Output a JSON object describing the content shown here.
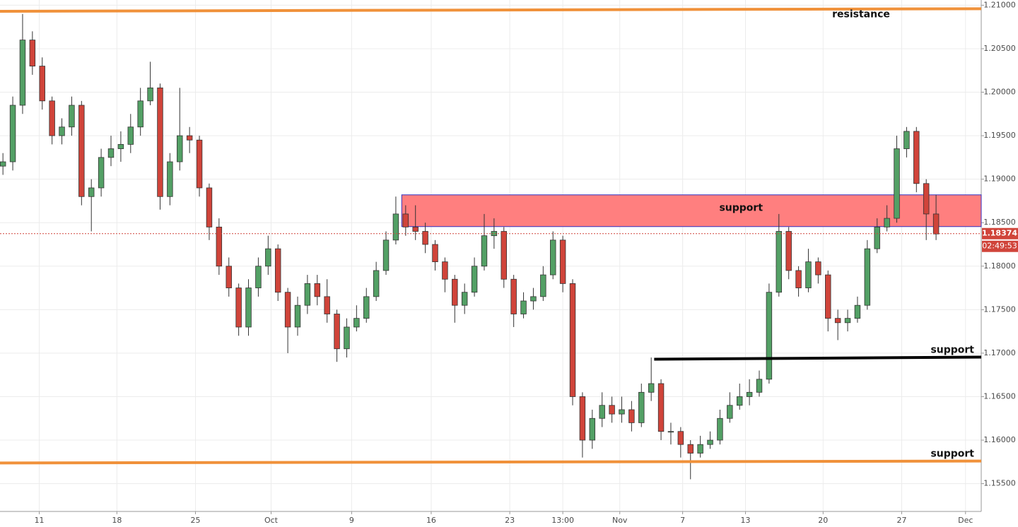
{
  "chart_data": {
    "type": "candlestick",
    "xlim": [
      -0.3,
      99.6
    ],
    "ylim": [
      1.1518,
      1.2106
    ],
    "grid": true,
    "up_color": "#53a065",
    "down_color": "#d0443a",
    "xticks": [
      {
        "value": 3.7,
        "label": "11"
      },
      {
        "value": 11.6,
        "label": "18"
      },
      {
        "value": 19.6,
        "label": "25"
      },
      {
        "value": 27.3,
        "label": "Oct"
      },
      {
        "value": 35.5,
        "label": "9"
      },
      {
        "value": 43.6,
        "label": "16"
      },
      {
        "value": 51.6,
        "label": "23"
      },
      {
        "value": 57.0,
        "label": "13:00"
      },
      {
        "value": 62.8,
        "label": "Nov"
      },
      {
        "value": 69.2,
        "label": "7"
      },
      {
        "value": 75.6,
        "label": "13"
      },
      {
        "value": 83.5,
        "label": "20"
      },
      {
        "value": 91.5,
        "label": "27"
      },
      {
        "value": 98.0,
        "label": "Dec"
      }
    ],
    "yticks": [
      {
        "value": 1.155,
        "label": "1.15500"
      },
      {
        "value": 1.16,
        "label": "1.16000"
      },
      {
        "value": 1.165,
        "label": "1.16500"
      },
      {
        "value": 1.17,
        "label": "1.17000"
      },
      {
        "value": 1.175,
        "label": "1.17500"
      },
      {
        "value": 1.18,
        "label": "1.18000"
      },
      {
        "value": 1.185,
        "label": "1.18500"
      },
      {
        "value": 1.19,
        "label": "1.19000"
      },
      {
        "value": 1.195,
        "label": "1.19500"
      },
      {
        "value": 1.2,
        "label": "1.20000"
      },
      {
        "value": 1.205,
        "label": "1.20500"
      },
      {
        "value": 1.21,
        "label": "1.21000"
      }
    ],
    "open": [
      1.1915,
      1.192,
      1.1985,
      1.206,
      1.203,
      1.199,
      1.195,
      1.196,
      1.1985,
      1.188,
      1.189,
      1.1925,
      1.1935,
      1.194,
      1.196,
      1.199,
      1.2005,
      1.188,
      1.192,
      1.195,
      1.1945,
      1.189,
      1.1845,
      1.18,
      1.1775,
      1.173,
      1.1775,
      1.18,
      1.182,
      1.177,
      1.173,
      1.1755,
      1.178,
      1.1765,
      1.1745,
      1.1705,
      1.173,
      1.174,
      1.1765,
      1.1795,
      1.183,
      1.186,
      1.1845,
      1.184,
      1.1825,
      1.1805,
      1.1785,
      1.1755,
      1.177,
      1.18,
      1.1835,
      1.184,
      1.1785,
      1.1745,
      1.176,
      1.1765,
      1.179,
      1.183,
      1.178,
      1.165,
      1.16,
      1.1625,
      1.164,
      1.163,
      1.1635,
      1.162,
      1.1655,
      1.1665,
      1.161,
      1.161,
      1.1595,
      1.1585,
      1.1595,
      1.16,
      1.1625,
      1.164,
      1.165,
      1.1655,
      1.167,
      1.177,
      1.184,
      1.1795,
      1.1775,
      1.1805,
      1.179,
      1.174,
      1.1735,
      1.174,
      1.1755,
      1.182,
      1.1845,
      1.1855,
      1.1935,
      1.1955,
      1.1895,
      1.186
    ],
    "high": [
      1.193,
      1.1995,
      1.209,
      1.207,
      1.204,
      1.1995,
      1.197,
      1.1995,
      1.199,
      1.19,
      1.1935,
      1.195,
      1.1955,
      1.1975,
      1.2005,
      1.2035,
      1.201,
      1.193,
      1.2005,
      1.196,
      1.195,
      1.1895,
      1.1855,
      1.181,
      1.178,
      1.1785,
      1.181,
      1.1835,
      1.1825,
      1.1775,
      1.1765,
      1.179,
      1.179,
      1.1785,
      1.175,
      1.174,
      1.1755,
      1.1775,
      1.1805,
      1.184,
      1.188,
      1.187,
      1.187,
      1.185,
      1.183,
      1.181,
      1.179,
      1.178,
      1.181,
      1.186,
      1.1855,
      1.1845,
      1.179,
      1.177,
      1.1775,
      1.18,
      1.184,
      1.1835,
      1.1785,
      1.1655,
      1.1635,
      1.1655,
      1.165,
      1.165,
      1.1645,
      1.1665,
      1.1695,
      1.167,
      1.162,
      1.1615,
      1.16,
      1.1605,
      1.161,
      1.1635,
      1.1655,
      1.1665,
      1.167,
      1.168,
      1.178,
      1.186,
      1.1845,
      1.18,
      1.182,
      1.181,
      1.1795,
      1.175,
      1.175,
      1.1765,
      1.183,
      1.1855,
      1.187,
      1.195,
      1.196,
      1.196,
      1.19,
      1.1882
    ],
    "low": [
      1.1905,
      1.191,
      1.1975,
      1.202,
      1.198,
      1.194,
      1.194,
      1.195,
      1.187,
      1.184,
      1.188,
      1.1915,
      1.192,
      1.193,
      1.195,
      1.1985,
      1.1865,
      1.187,
      1.191,
      1.193,
      1.188,
      1.183,
      1.179,
      1.1765,
      1.172,
      1.172,
      1.1765,
      1.179,
      1.176,
      1.17,
      1.172,
      1.1745,
      1.1755,
      1.1735,
      1.169,
      1.1695,
      1.1725,
      1.1735,
      1.176,
      1.179,
      1.1825,
      1.1835,
      1.183,
      1.1815,
      1.1795,
      1.177,
      1.1735,
      1.1745,
      1.1765,
      1.1795,
      1.182,
      1.1775,
      1.173,
      1.174,
      1.175,
      1.176,
      1.1785,
      1.177,
      1.164,
      1.158,
      1.159,
      1.1615,
      1.162,
      1.162,
      1.161,
      1.1615,
      1.1645,
      1.16,
      1.1595,
      1.158,
      1.1555,
      1.158,
      1.159,
      1.1595,
      1.162,
      1.1635,
      1.164,
      1.165,
      1.1665,
      1.1765,
      1.1785,
      1.1765,
      1.177,
      1.178,
      1.1725,
      1.1715,
      1.1725,
      1.1735,
      1.175,
      1.1815,
      1.184,
      1.185,
      1.1925,
      1.1885,
      1.183,
      1.183
    ],
    "close": [
      1.192,
      1.1985,
      1.206,
      1.203,
      1.199,
      1.195,
      1.196,
      1.1985,
      1.188,
      1.189,
      1.1925,
      1.1935,
      1.194,
      1.196,
      1.199,
      1.2005,
      1.188,
      1.192,
      1.195,
      1.1945,
      1.189,
      1.1845,
      1.18,
      1.1775,
      1.173,
      1.1775,
      1.18,
      1.182,
      1.177,
      1.173,
      1.1755,
      1.178,
      1.1765,
      1.1745,
      1.1705,
      1.173,
      1.174,
      1.1765,
      1.1795,
      1.183,
      1.186,
      1.1845,
      1.184,
      1.1825,
      1.1805,
      1.1785,
      1.1755,
      1.177,
      1.18,
      1.1835,
      1.184,
      1.1785,
      1.1745,
      1.176,
      1.1765,
      1.179,
      1.183,
      1.178,
      1.165,
      1.16,
      1.1625,
      1.164,
      1.163,
      1.1635,
      1.162,
      1.1655,
      1.1665,
      1.161,
      1.161,
      1.1595,
      1.1585,
      1.1595,
      1.16,
      1.1625,
      1.164,
      1.165,
      1.1655,
      1.167,
      1.177,
      1.184,
      1.1795,
      1.1775,
      1.1805,
      1.179,
      1.174,
      1.1735,
      1.174,
      1.1755,
      1.182,
      1.1845,
      1.1855,
      1.1935,
      1.1955,
      1.1895,
      1.186,
      1.1837
    ],
    "lines": [
      {
        "label": "resistance",
        "x": [
          -0.3,
          99.6
        ],
        "y": [
          1.2093,
          1.2096
        ],
        "color": "#f0913a"
      },
      {
        "label": "support",
        "x": [
          66.3,
          99.6
        ],
        "y": [
          1.1693,
          1.16955
        ],
        "color": "#000000"
      },
      {
        "label": "support",
        "x": [
          -0.3,
          99.6
        ],
        "y": [
          1.15737,
          1.1576
        ],
        "color": "#f0913a"
      }
    ],
    "zone": {
      "label": "support",
      "x": [
        40.6,
        99.6
      ],
      "y": [
        1.18455,
        1.1882
      ],
      "color": "#ff7f7f"
    },
    "last_price": {
      "value": 1.18374,
      "label": "1.18374"
    },
    "timer": "02:49:53"
  }
}
